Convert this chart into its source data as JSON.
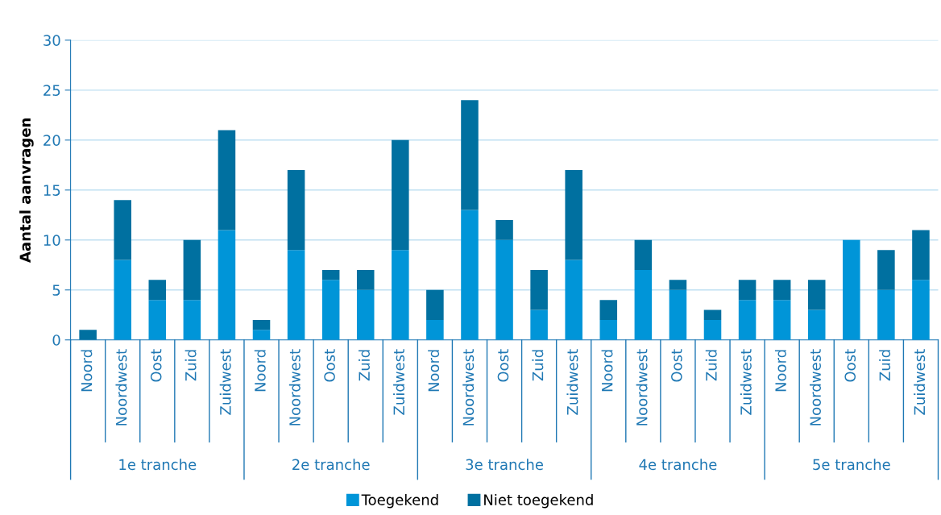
{
  "chart_data": {
    "type": "bar",
    "stacked": true,
    "ylabel": "Aantal aanvragen",
    "categories": [
      "Noord",
      "Noordwest",
      "Oost",
      "Zuid",
      "Zuidwest",
      "Noord",
      "Noordwest",
      "Oost",
      "Zuid",
      "Zuidwest",
      "Noord",
      "Noordwest",
      "Oost",
      "Zuid",
      "Zuidwest",
      "Noord",
      "Noordwest",
      "Oost",
      "Zuid",
      "Zuidwest",
      "Noord",
      "Noordwest",
      "Oost",
      "Zuid",
      "Zuidwest"
    ],
    "annotations": [
      "1e tranche",
      "2e tranche",
      "3e tranche",
      "4e tranche",
      "5e tranche"
    ],
    "series": [
      {
        "name": "Toegekend",
        "color": "#0095d8",
        "values": [
          0,
          8,
          4,
          4,
          11,
          1,
          9,
          6,
          5,
          9,
          2,
          13,
          10,
          3,
          8,
          2,
          7,
          5,
          2,
          4,
          4,
          3,
          10,
          5,
          6
        ]
      },
      {
        "name": "Niet toegekend",
        "color": "#0070a0",
        "values": [
          1,
          6,
          2,
          6,
          10,
          1,
          8,
          1,
          2,
          11,
          3,
          11,
          2,
          4,
          9,
          2,
          3,
          1,
          1,
          2,
          2,
          3,
          0,
          4,
          5
        ]
      }
    ],
    "ylim": [
      0,
      30
    ],
    "yticks": [
      0,
      5,
      10,
      15,
      20,
      25,
      30
    ],
    "grid": "y",
    "legend": "bottom"
  }
}
